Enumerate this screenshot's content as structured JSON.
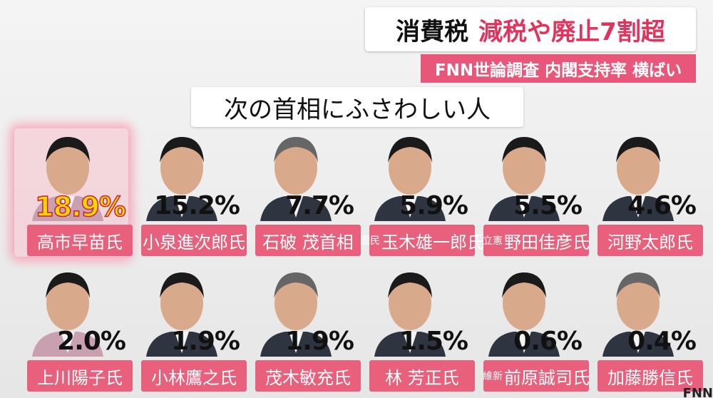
{
  "header": {
    "topic": "消費税",
    "headline": "減税や廃止7割超"
  },
  "subheader": "FNN世論調査 内閣支持率 横ばい",
  "title": "次の首相にふさわしい人",
  "candidates": [
    {
      "name": "高市早苗氏",
      "support": "18.9%"
    },
    {
      "name": "小泉進次郎氏",
      "support": "15.2%"
    },
    {
      "name": "石破 茂首相",
      "support": "7.7%"
    },
    {
      "prefix": "国民",
      "name": "玉木雄一郎氏",
      "support": "5.9%"
    },
    {
      "prefix": "立憲",
      "name": "野田佳彦氏",
      "support": "5.5%"
    },
    {
      "name": "河野太郎氏",
      "support": "4.6%"
    },
    {
      "name": "上川陽子氏",
      "support": "2.0%"
    },
    {
      "name": "小林鷹之氏",
      "support": "1.9%"
    },
    {
      "name": "茂木敏充氏",
      "support": "1.9%"
    },
    {
      "name": "林 芳正氏",
      "support": "1.5%"
    },
    {
      "prefix": "維新",
      "name": "前原誠司氏",
      "support": "0.6%"
    },
    {
      "name": "加藤勝信氏",
      "support": "0.4%"
    }
  ],
  "logo": "FNN"
}
